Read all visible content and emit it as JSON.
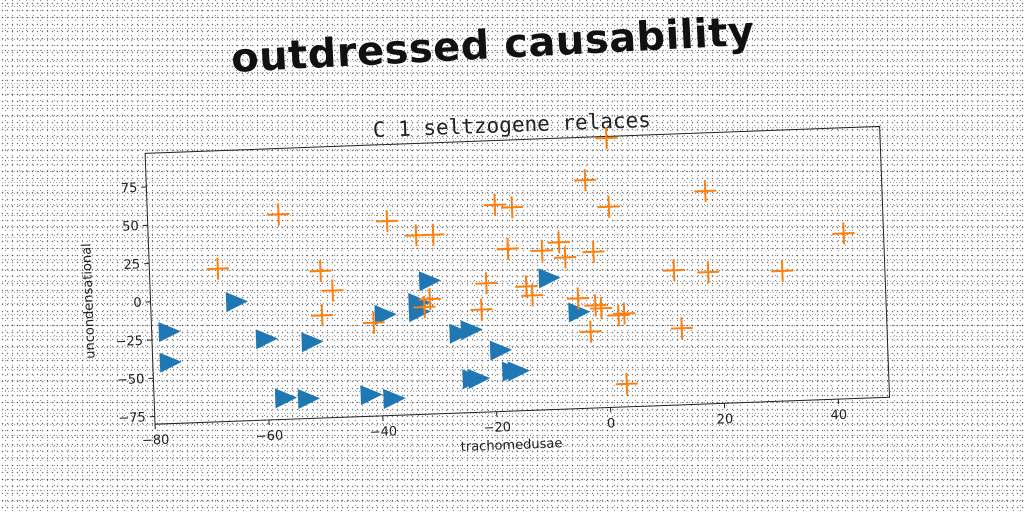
{
  "title": "outdressed causability",
  "chart_data": {
    "type": "scatter",
    "title": "C 1 seltzogene relaces",
    "xlabel": "trachomedusae",
    "ylabel": "uncondensational",
    "xlim": [
      -80,
      49
    ],
    "ylim": [
      -80,
      97
    ],
    "xticks": [
      -80,
      -60,
      -40,
      -20,
      0,
      20,
      40
    ],
    "yticks": [
      -75,
      -50,
      -25,
      0,
      25,
      50,
      75
    ],
    "grid": false,
    "series": [
      {
        "marker": "triangle-right",
        "color": "#1f77b4",
        "x": [
          -77,
          -77,
          -65,
          -60,
          -57,
          -52,
          -53,
          -39,
          -38,
          -33,
          -33,
          -31,
          -26,
          -24,
          -24,
          -23,
          -19,
          -17,
          -16,
          -10,
          -5,
          -38,
          -42
        ],
        "y": [
          -20,
          -40,
          -2,
          -27,
          -66,
          -30,
          -67,
          -14,
          -69,
          -13,
          -7,
          7,
          -28,
          -26,
          -58,
          -58,
          -40,
          -54,
          -54,
          6,
          -17,
          -69,
          -66
        ]
      },
      {
        "marker": "plus",
        "color": "#ff7f0e",
        "x": [
          1,
          -3,
          1,
          18,
          -19,
          -16,
          -17,
          -38,
          -33,
          -30,
          -17,
          -8,
          -11,
          -7,
          -2,
          -68,
          -50,
          -48,
          -57,
          -50,
          -31,
          -41,
          -32,
          -21,
          -14,
          -13,
          -22,
          -5,
          -3,
          -1,
          2,
          12,
          18,
          31,
          42,
          -2,
          3,
          3,
          13
        ],
        "y": [
          96,
          69,
          51,
          59,
          55,
          53,
          26,
          47,
          37,
          37,
          26,
          29,
          24,
          19,
          22,
          20,
          16,
          3,
          54,
          -13,
          -5,
          -19,
          -10,
          4,
          1,
          -5,
          -13,
          -8,
          -30,
          -15,
          -20,
          8,
          6,
          5,
          28,
          -13,
          -19,
          -65,
          -30
        ]
      }
    ]
  }
}
